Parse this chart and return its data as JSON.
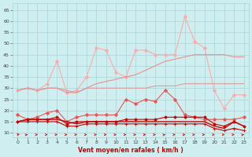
{
  "x": [
    0,
    1,
    2,
    3,
    4,
    5,
    6,
    7,
    8,
    9,
    10,
    11,
    12,
    13,
    14,
    15,
    16,
    17,
    18,
    19,
    20,
    21,
    22,
    23
  ],
  "line_jagged_light": [
    29,
    30,
    29,
    32,
    42,
    28,
    29,
    35,
    48,
    47,
    37,
    35,
    47,
    47,
    45,
    45,
    45,
    62,
    51,
    48,
    29,
    21,
    27,
    27
  ],
  "line_mid_pink": [
    29,
    30,
    29,
    30,
    30,
    28,
    28,
    30,
    32,
    33,
    34,
    35,
    36,
    38,
    40,
    42,
    43,
    44,
    45,
    45,
    45,
    45,
    44,
    44
  ],
  "line_flat_pink": [
    29,
    30,
    29,
    30,
    30,
    29,
    28,
    30,
    30,
    30,
    30,
    30,
    30,
    30,
    31,
    31,
    31,
    32,
    32,
    32,
    32,
    32,
    32,
    32
  ],
  "line_med_red": [
    18,
    16,
    17,
    19,
    20,
    15,
    17,
    18,
    18,
    18,
    18,
    25,
    23,
    25,
    24,
    29,
    25,
    18,
    17,
    16,
    16,
    16,
    16,
    17
  ],
  "line_dark1": [
    15,
    16,
    16,
    16,
    16,
    15,
    14,
    15,
    15,
    15,
    15,
    15,
    15,
    15,
    15,
    15,
    15,
    15,
    15,
    15,
    13,
    12,
    15,
    13
  ],
  "line_dark2": [
    15,
    15,
    15,
    15,
    15,
    13,
    13,
    14,
    14,
    14,
    14,
    14,
    14,
    14,
    14,
    14,
    14,
    14,
    14,
    14,
    12,
    11,
    12,
    11
  ],
  "line_dark3": [
    15,
    16,
    16,
    16,
    17,
    14,
    15,
    15,
    15,
    15,
    15,
    16,
    16,
    16,
    16,
    17,
    17,
    17,
    17,
    17,
    14,
    13,
    15,
    13
  ],
  "arrows_angle": [
    45,
    30,
    10,
    10,
    10,
    10,
    10,
    10,
    10,
    10,
    10,
    10,
    10,
    10,
    10,
    30,
    10,
    10,
    10,
    10,
    10,
    10,
    10,
    30
  ],
  "background_color": "#ceeef0",
  "grid_color": "#aad4d6",
  "color_light_pink": "#ffaaaa",
  "color_mid_pink": "#ee8888",
  "color_flat_pink": "#dd9999",
  "color_med_red": "#ee5555",
  "color_dark_red": "#cc0000",
  "color_arrow": "#cc0000",
  "xlabel": "Vent moyen/en rafales ( km/h )",
  "xlabel_color": "#cc0000",
  "ylim": [
    8,
    68
  ],
  "yticks": [
    10,
    15,
    20,
    25,
    30,
    35,
    40,
    45,
    50,
    55,
    60,
    65
  ],
  "xlim": [
    -0.5,
    23.5
  ]
}
